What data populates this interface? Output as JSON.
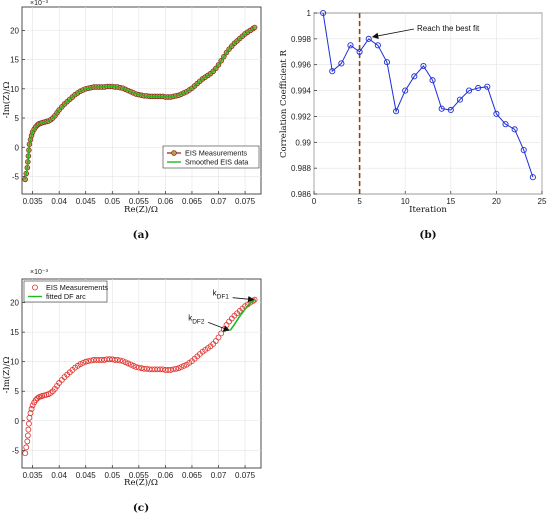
{
  "chart_data": [
    {
      "panel_label": "(a)",
      "type": "line",
      "xlabel": "Re(Z)/Ω",
      "ylabel": "-Im(Z)/Ω",
      "y_multiplier": "×10⁻³",
      "xlim": [
        0.033,
        0.078
      ],
      "ylim": [
        -8,
        24
      ],
      "xticks": [
        "0.035",
        "0.04",
        "0.045",
        "0.05",
        "0.055",
        "0.06",
        "0.065",
        "0.07",
        "0.075"
      ],
      "xtick_values": [
        0.035,
        0.04,
        0.045,
        0.05,
        0.055,
        0.06,
        0.065,
        0.07,
        0.075
      ],
      "yticks": [
        "-5",
        "0",
        "5",
        "10",
        "15",
        "20"
      ],
      "ytick_values": [
        -5,
        0,
        5,
        10,
        15,
        20
      ],
      "grid": true,
      "legend_position": "lower-right",
      "series": [
        {
          "name": "EIS Measurements",
          "color": "#8b1a1a",
          "marker_fill": "#b5a24a",
          "x": [
            0.0336,
            0.0338,
            0.034,
            0.0341,
            0.0342,
            0.0343,
            0.0344,
            0.0346,
            0.0348,
            0.035,
            0.0353,
            0.0356,
            0.0359,
            0.0362,
            0.0365,
            0.0368,
            0.0372,
            0.0376,
            0.038,
            0.0384,
            0.0388,
            0.0392,
            0.0396,
            0.04,
            0.0405,
            0.041,
            0.0415,
            0.042,
            0.0425,
            0.043,
            0.0435,
            0.044,
            0.0445,
            0.045,
            0.0455,
            0.046,
            0.0465,
            0.047,
            0.0475,
            0.048,
            0.0485,
            0.049,
            0.0495,
            0.05,
            0.0505,
            0.051,
            0.0515,
            0.052,
            0.0525,
            0.053,
            0.0535,
            0.054,
            0.0545,
            0.055,
            0.0555,
            0.056,
            0.0565,
            0.057,
            0.0575,
            0.058,
            0.0585,
            0.059,
            0.0595,
            0.06,
            0.0605,
            0.061,
            0.0615,
            0.062,
            0.0625,
            0.063,
            0.0635,
            0.064,
            0.0645,
            0.065,
            0.0655,
            0.066,
            0.0665,
            0.067,
            0.0675,
            0.068,
            0.0685,
            0.069,
            0.0695,
            0.07,
            0.0705,
            0.071,
            0.0715,
            0.072,
            0.0725,
            0.073,
            0.0735,
            0.074,
            0.0745,
            0.075,
            0.0755,
            0.076,
            0.0765,
            0.0768
          ],
          "y": [
            -5.5,
            -4.5,
            -3.5,
            -2.5,
            -1.5,
            -0.5,
            0.5,
            1.3,
            2,
            2.6,
            3.1,
            3.5,
            3.8,
            4,
            4.1,
            4.2,
            4.3,
            4.4,
            4.5,
            4.7,
            5,
            5.4,
            5.9,
            6.4,
            6.9,
            7.4,
            7.8,
            8.2,
            8.6,
            9,
            9.3,
            9.6,
            9.8,
            10,
            10.1,
            10.2,
            10.3,
            10.3,
            10.3,
            10.3,
            10.3,
            10.4,
            10.4,
            10.4,
            10.3,
            10.3,
            10.2,
            10.1,
            9.9,
            9.7,
            9.5,
            9.3,
            9.1,
            9,
            8.9,
            8.8,
            8.8,
            8.7,
            8.7,
            8.7,
            8.7,
            8.7,
            8.7,
            8.6,
            8.6,
            8.6,
            8.7,
            8.8,
            8.9,
            9.1,
            9.3,
            9.5,
            9.8,
            10.1,
            10.5,
            10.9,
            11.3,
            11.7,
            12,
            12.3,
            12.6,
            13,
            13.5,
            14.1,
            14.8,
            15.5,
            16.2,
            16.8,
            17.3,
            17.8,
            18.2,
            18.6,
            19,
            19.4,
            19.7,
            20,
            20.3,
            20.5
          ]
        },
        {
          "name": "Smoothed EIS data",
          "color": "#22b822",
          "x": [
            0.0336,
            0.034,
            0.0344,
            0.035,
            0.0356,
            0.0362,
            0.0368,
            0.0376,
            0.0384,
            0.0392,
            0.04,
            0.041,
            0.042,
            0.043,
            0.044,
            0.045,
            0.046,
            0.047,
            0.048,
            0.049,
            0.05,
            0.051,
            0.052,
            0.053,
            0.054,
            0.055,
            0.056,
            0.057,
            0.058,
            0.059,
            0.06,
            0.061,
            0.062,
            0.063,
            0.064,
            0.065,
            0.066,
            0.067,
            0.068,
            0.069,
            0.07,
            0.071,
            0.072,
            0.073,
            0.074,
            0.075,
            0.076,
            0.0768
          ],
          "y": [
            -5.5,
            -3.5,
            0.5,
            2.6,
            3.5,
            4,
            4.2,
            4.4,
            4.7,
            5.4,
            6.4,
            7.4,
            8.2,
            9,
            9.6,
            10,
            10.2,
            10.3,
            10.3,
            10.4,
            10.4,
            10.3,
            10.1,
            9.7,
            9.3,
            9,
            8.8,
            8.7,
            8.7,
            8.7,
            8.6,
            8.6,
            8.8,
            9.1,
            9.5,
            10.1,
            10.9,
            11.7,
            12.3,
            13,
            14.1,
            15.5,
            16.8,
            17.8,
            18.6,
            19.4,
            20,
            20.5
          ]
        }
      ]
    },
    {
      "panel_label": "(b)",
      "type": "line",
      "xlabel": "Iteration",
      "ylabel": "Correlation Coefficient R",
      "xlim": [
        0,
        25
      ],
      "ylim": [
        0.986,
        1
      ],
      "xticks": [
        "0",
        "5",
        "10",
        "15",
        "20",
        "25"
      ],
      "xtick_values": [
        0,
        5,
        10,
        15,
        20,
        25
      ],
      "yticks": [
        "0.986",
        "0.988",
        "0.99",
        "0.992",
        "0.994",
        "0.996",
        "0.998",
        "1"
      ],
      "ytick_values": [
        0.986,
        0.988,
        0.99,
        0.992,
        0.994,
        0.996,
        0.998,
        1
      ],
      "grid": true,
      "annotation": "Reach the best fit",
      "dashed_line_x": 5,
      "dashed_line_color": "#8b4513",
      "series": [
        {
          "color": "#1f2fd8",
          "x": [
            1,
            2,
            3,
            4,
            5,
            6,
            7,
            8,
            9,
            10,
            11,
            12,
            13,
            14,
            15,
            16,
            17,
            18,
            19,
            20,
            21,
            22,
            23,
            24
          ],
          "y": [
            1.0,
            0.9955,
            0.9961,
            0.9975,
            0.997,
            0.998,
            0.9975,
            0.9962,
            0.9924,
            0.994,
            0.9951,
            0.9959,
            0.9948,
            0.9926,
            0.9925,
            0.9933,
            0.994,
            0.9942,
            0.9943,
            0.9922,
            0.9914,
            0.991,
            0.9894,
            0.9873
          ]
        }
      ]
    },
    {
      "panel_label": "(c)",
      "type": "scatter",
      "xlabel": "Re(Z)/Ω",
      "ylabel": "-Im(Z)/Ω",
      "y_multiplier": "×10⁻³",
      "xlim": [
        0.033,
        0.078
      ],
      "ylim": [
        -8,
        24
      ],
      "xticks": [
        "0.035",
        "0.04",
        "0.045",
        "0.05",
        "0.055",
        "0.06",
        "0.065",
        "0.07",
        "0.075"
      ],
      "xtick_values": [
        0.035,
        0.04,
        0.045,
        0.05,
        0.055,
        0.06,
        0.065,
        0.07,
        0.075
      ],
      "yticks": [
        "-5",
        "0",
        "5",
        "10",
        "15",
        "20"
      ],
      "ytick_values": [
        -5,
        0,
        5,
        10,
        15,
        20
      ],
      "grid": true,
      "legend_position": "top-left",
      "annotations": [
        {
          "label": "k",
          "sub": "DF1",
          "x": 0.0768,
          "y": 20.5
        },
        {
          "label": "k",
          "sub": "DF2",
          "x": 0.0722,
          "y": 15.3
        }
      ],
      "series": [
        {
          "name": "EIS Measurements",
          "color": "#e0302a",
          "x": [
            0.0336,
            0.0338,
            0.034,
            0.0341,
            0.0342,
            0.0343,
            0.0344,
            0.0346,
            0.0348,
            0.035,
            0.0353,
            0.0356,
            0.0359,
            0.0362,
            0.0365,
            0.0368,
            0.0372,
            0.0376,
            0.038,
            0.0384,
            0.0388,
            0.0392,
            0.0396,
            0.04,
            0.0405,
            0.041,
            0.0415,
            0.042,
            0.0425,
            0.043,
            0.0435,
            0.044,
            0.0445,
            0.045,
            0.0455,
            0.046,
            0.0465,
            0.047,
            0.0475,
            0.048,
            0.0485,
            0.049,
            0.0495,
            0.05,
            0.0505,
            0.051,
            0.0515,
            0.052,
            0.0525,
            0.053,
            0.0535,
            0.054,
            0.0545,
            0.055,
            0.0555,
            0.056,
            0.0565,
            0.057,
            0.0575,
            0.058,
            0.0585,
            0.059,
            0.0595,
            0.06,
            0.0605,
            0.061,
            0.0615,
            0.062,
            0.0625,
            0.063,
            0.0635,
            0.064,
            0.0645,
            0.065,
            0.0655,
            0.066,
            0.0665,
            0.067,
            0.0675,
            0.068,
            0.0685,
            0.069,
            0.0695,
            0.07,
            0.0705,
            0.071,
            0.0715,
            0.072,
            0.0725,
            0.073,
            0.0735,
            0.074,
            0.0745,
            0.075,
            0.0755,
            0.076,
            0.0765,
            0.0768
          ],
          "y": [
            -5.5,
            -4.5,
            -3.5,
            -2.5,
            -1.5,
            -0.5,
            0.5,
            1.3,
            2,
            2.6,
            3.1,
            3.5,
            3.8,
            4,
            4.1,
            4.2,
            4.3,
            4.4,
            4.5,
            4.7,
            5,
            5.4,
            5.9,
            6.4,
            6.9,
            7.4,
            7.8,
            8.2,
            8.6,
            9,
            9.3,
            9.6,
            9.8,
            10,
            10.1,
            10.2,
            10.3,
            10.3,
            10.3,
            10.3,
            10.3,
            10.4,
            10.4,
            10.4,
            10.3,
            10.3,
            10.2,
            10.1,
            9.9,
            9.7,
            9.5,
            9.3,
            9.1,
            9,
            8.9,
            8.8,
            8.8,
            8.7,
            8.7,
            8.7,
            8.7,
            8.7,
            8.7,
            8.6,
            8.6,
            8.6,
            8.7,
            8.8,
            8.9,
            9.1,
            9.3,
            9.5,
            9.8,
            10.1,
            10.5,
            10.9,
            11.3,
            11.7,
            12,
            12.3,
            12.6,
            13,
            13.5,
            14.1,
            14.8,
            15.5,
            16.2,
            16.8,
            17.3,
            17.8,
            18.2,
            18.6,
            19,
            19.4,
            19.7,
            20,
            20.3,
            20.5
          ]
        },
        {
          "name": "fitted DF arc",
          "color": "#22b822",
          "x": [
            0.0722,
            0.073,
            0.074,
            0.075,
            0.076,
            0.0768
          ],
          "y": [
            15.3,
            16.3,
            17.7,
            18.9,
            19.9,
            20.5
          ]
        }
      ]
    }
  ]
}
